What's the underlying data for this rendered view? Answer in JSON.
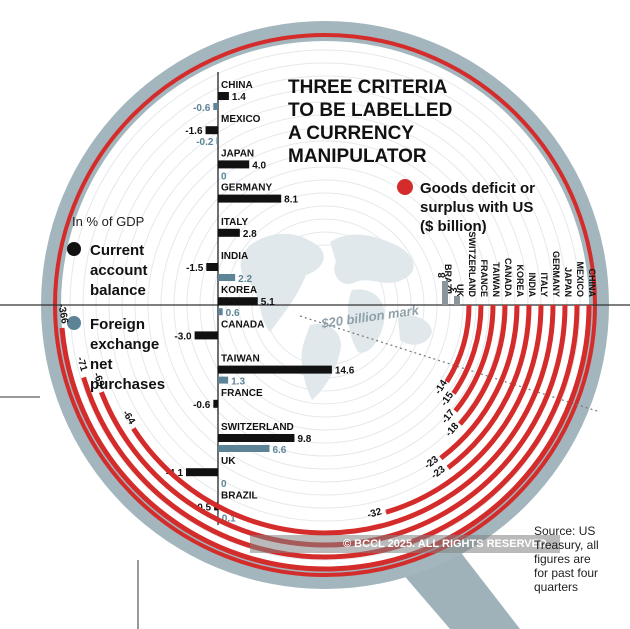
{
  "title_lines": [
    "THREE CRITERIA",
    "TO BE LABELLED",
    "A CURRENCY",
    "MANIPULATOR"
  ],
  "gdp_note": "In % of GDP",
  "legend": {
    "current_account": [
      "Current",
      "account",
      "balance"
    ],
    "fx": [
      "Foreign",
      "exchange",
      "net",
      "purchases"
    ],
    "goods": [
      "Goods deficit or",
      "surplus with US",
      "($ billion)"
    ]
  },
  "mark_label": "$20 billion mark",
  "source_lines": [
    "Source: US",
    "Treasury, all",
    "figures are",
    "for past four",
    "quarters"
  ],
  "watermark": "© BCCL 2025. ALL RIGHTS RESERVED.",
  "colors": {
    "current_account": "#111111",
    "fx": "#5d8496",
    "goods": "#d42b2b",
    "ring": "#8fa3ad",
    "map": "#dfe7ea"
  },
  "chart_data": [
    {
      "type": "bar",
      "orientation": "horizontal",
      "note": "In % of GDP",
      "categories": [
        "CHINA",
        "MEXICO",
        "JAPAN",
        "GERMANY",
        "ITALY",
        "INDIA",
        "KOREA",
        "CANADA",
        "TAIWAN",
        "FRANCE",
        "SWITZERLAND",
        "UK",
        "BRAZIL"
      ],
      "series": [
        {
          "name": "Current account balance",
          "values": [
            1.4,
            -1.6,
            4.0,
            8.1,
            2.8,
            -1.5,
            5.1,
            -3.0,
            14.6,
            -0.6,
            9.8,
            -4.1,
            -0.5
          ],
          "labels": [
            "1.4",
            "-1.6",
            "4.0",
            "8.1",
            "2.8",
            "-1.5",
            "5.1",
            "-3.0",
            "14.6",
            "-0.6",
            "9.8",
            "-4.1",
            "-0.5"
          ]
        },
        {
          "name": "Foreign exchange net purchases",
          "values": [
            -0.6,
            -0.2,
            0,
            null,
            null,
            2.2,
            0.6,
            null,
            1.3,
            null,
            6.6,
            0,
            0.1
          ],
          "labels": [
            "-0.6",
            "-0.2",
            "0",
            "",
            "",
            "2.2",
            "0.6",
            "",
            "1.3",
            "",
            "6.6",
            "0",
            "0.1"
          ]
        }
      ]
    },
    {
      "type": "bar",
      "orientation": "radial",
      "name": "Goods deficit or surplus with US ($ billion)",
      "categories": [
        "BRAZIL",
        "UK",
        "SWITZERLAND",
        "FRANCE",
        "TAIWAN",
        "CANADA",
        "KOREA",
        "INDIA",
        "ITALY",
        "GERMANY",
        "JAPAN",
        "MEXICO",
        "CHINA"
      ],
      "values": [
        8,
        3,
        -14,
        -15,
        -17,
        -18,
        -23,
        -23,
        -32,
        -64,
        -69,
        -71,
        -366
      ],
      "labels": [
        "8",
        "3",
        "-14",
        "-15",
        "-17",
        "-18",
        "-23",
        "-23",
        "-32",
        "-64",
        "-69",
        "-71",
        "-366"
      ],
      "reference_line": {
        "label": "$20 billion mark",
        "value": -20
      }
    }
  ]
}
